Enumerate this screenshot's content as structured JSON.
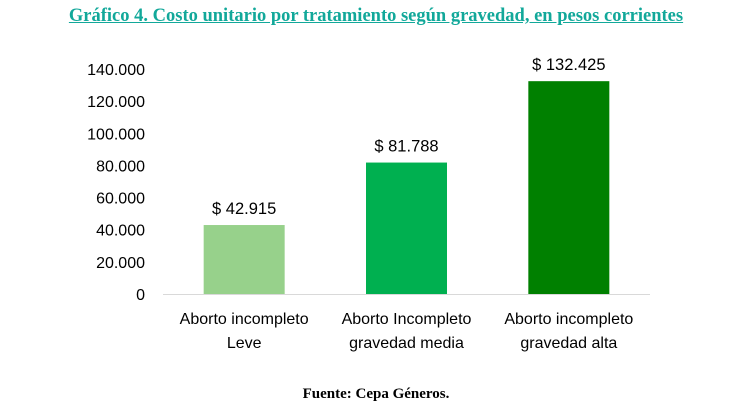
{
  "title": "Gráfico 4. Costo unitario por tratamiento según gravedad, en pesos corrientes",
  "source": "Fuente: Cepa Géneros.",
  "chart_data": {
    "type": "bar",
    "categories": [
      [
        "Aborto incompleto",
        "Leve"
      ],
      [
        "Aborto Incompleto",
        "gravedad media"
      ],
      [
        "Aborto incompleto",
        "gravedad alta"
      ]
    ],
    "values": [
      42915,
      81788,
      132425
    ],
    "data_labels": [
      "$ 42.915",
      "$ 81.788",
      "$ 132.425"
    ],
    "bar_colors": [
      "#97d18b",
      "#00b050",
      "#008000"
    ],
    "ylim": [
      0,
      140000
    ],
    "yticks": [
      0,
      20000,
      40000,
      60000,
      80000,
      100000,
      120000,
      140000
    ],
    "ytick_labels": [
      "0",
      "20.000",
      "40.000",
      "60.000",
      "80.000",
      "100.000",
      "120.000",
      "140.000"
    ],
    "grid": false,
    "xlabel": "",
    "ylabel": ""
  }
}
